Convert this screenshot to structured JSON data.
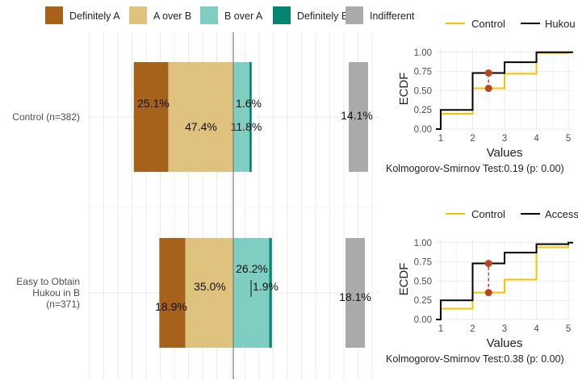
{
  "chart_data": [
    {
      "type": "bar",
      "orientation": "horizontal",
      "stacked": "diverging",
      "legend": {
        "position": "top",
        "entries": [
          {
            "name": "Definitely A",
            "color": "#a6611a"
          },
          {
            "name": "A over B",
            "color": "#dfc27d"
          },
          {
            "name": "B over A",
            "color": "#80cdc1"
          },
          {
            "name": "Definitely B",
            "color": "#018571"
          },
          {
            "name": "Indifferent",
            "color": "#aaaaaa"
          }
        ]
      },
      "categories": [
        "Control (n=382)",
        "Easy to Obtain Hukou in B (n=371)"
      ],
      "category_lines": [
        [
          "Control (n=382)"
        ],
        [
          "Easy to Obtain",
          "Hukou in B",
          "(n=371)"
        ]
      ],
      "series": [
        {
          "name": "Definitely A",
          "values": [
            25.1,
            18.9
          ],
          "labels": [
            "25.1%",
            "18.9%"
          ]
        },
        {
          "name": "A over B",
          "values": [
            47.4,
            35.0
          ],
          "labels": [
            "47.4%",
            "35.0%"
          ]
        },
        {
          "name": "B over A",
          "values": [
            11.8,
            26.2
          ],
          "labels": [
            "11.8%",
            "26.2%"
          ]
        },
        {
          "name": "Definitely B",
          "values": [
            1.6,
            1.9
          ],
          "labels": [
            "1.6%",
            "1.9%"
          ]
        },
        {
          "name": "Indifferent",
          "values": [
            14.1,
            18.1
          ],
          "labels": [
            "14.1%",
            "18.1%"
          ]
        }
      ],
      "grid": true
    },
    {
      "type": "line",
      "subtype": "ecdf-step",
      "legend": [
        "Control",
        "Hukou"
      ],
      "series": [
        {
          "name": "Control",
          "color": "#f5c400",
          "x": [
            1,
            2,
            3,
            4,
            5
          ],
          "y": [
            0.2,
            0.53,
            0.72,
            0.99,
            1.0
          ]
        },
        {
          "name": "Hukou",
          "color": "#000000",
          "x": [
            1,
            2,
            3,
            4,
            5
          ],
          "y": [
            0.25,
            0.73,
            0.87,
            1.0,
            1.0
          ]
        }
      ],
      "ks_marker": {
        "x": 2.5,
        "y": [
          0.53,
          0.73
        ]
      },
      "xlabel": "Values",
      "ylabel": "ECDF",
      "xticks": [
        "1",
        "2",
        "3",
        "4",
        "5"
      ],
      "yticks": [
        "0.00",
        "0.25",
        "0.50",
        "0.75",
        "1.00"
      ],
      "xlim": [
        0.85,
        5.15
      ],
      "ylim": [
        0,
        1.05
      ],
      "caption": "Kolmogorov-Smirnov Test:0.19 (p: 0.00)"
    },
    {
      "type": "line",
      "subtype": "ecdf-step",
      "legend": [
        "Control",
        "Access"
      ],
      "series": [
        {
          "name": "Control",
          "color": "#f5c400",
          "x": [
            1,
            2,
            3,
            4,
            5
          ],
          "y": [
            0.14,
            0.35,
            0.52,
            0.94,
            1.0
          ]
        },
        {
          "name": "Access",
          "color": "#000000",
          "x": [
            1,
            2,
            3,
            4,
            5
          ],
          "y": [
            0.25,
            0.73,
            0.87,
            0.98,
            1.0
          ]
        }
      ],
      "ks_marker": {
        "x": 2.5,
        "y": [
          0.35,
          0.73
        ]
      },
      "xlabel": "Values",
      "ylabel": "ECDF",
      "xticks": [
        "1",
        "2",
        "3",
        "4",
        "5"
      ],
      "yticks": [
        "0.00",
        "0.25",
        "0.50",
        "0.75",
        "1.00"
      ],
      "xlim": [
        0.85,
        5.15
      ],
      "ylim": [
        0,
        1.05
      ],
      "caption": "Kolmogorov-Smirnov Test:0.38 (p: 0.00)"
    }
  ]
}
